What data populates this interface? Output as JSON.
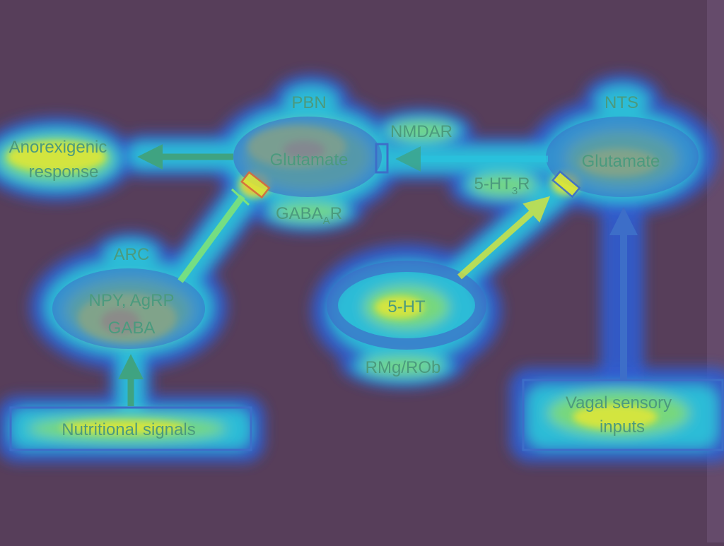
{
  "colors": {
    "background": "#573e5a",
    "right_edge_band": "#6e5576",
    "halo_outer": "#2f5fd8",
    "halo_mid": "#29c3de",
    "halo_inner": "#7ee37a",
    "hot_core": "#d9e63b",
    "hot_spot": "#f0a33a",
    "node_fill": "#3d6ec8",
    "label_text": "#4b9a7e",
    "arrow_green": "#3fa381",
    "arrow_blue": "#3d6ec8"
  },
  "labels": {
    "pbn": "PBN",
    "nts": "NTS",
    "arc": "ARC",
    "rmg_rob": "RMg/ROb",
    "nmdar": "NMDAR",
    "gabaar": {
      "pre": "GABA",
      "sub": "A",
      "post": "R"
    },
    "ht3r": {
      "pre": "5-HT",
      "sub": "3",
      "post": "R"
    }
  },
  "nodes": {
    "pbn": {
      "line1": "Glutamate"
    },
    "nts": {
      "line1": "Glutamate"
    },
    "arc": {
      "line1": "NPY, AgRP",
      "line2": "GABA"
    },
    "raphe": {
      "line1": "5-HT"
    }
  },
  "outputs": {
    "anorexigenic": {
      "line1": "Anorexigenic",
      "line2": "response"
    }
  },
  "inputs": {
    "nutritional": {
      "line1": "Nutritional signals"
    },
    "vagal": {
      "line1": "Vagal sensory",
      "line2": "inputs"
    }
  }
}
